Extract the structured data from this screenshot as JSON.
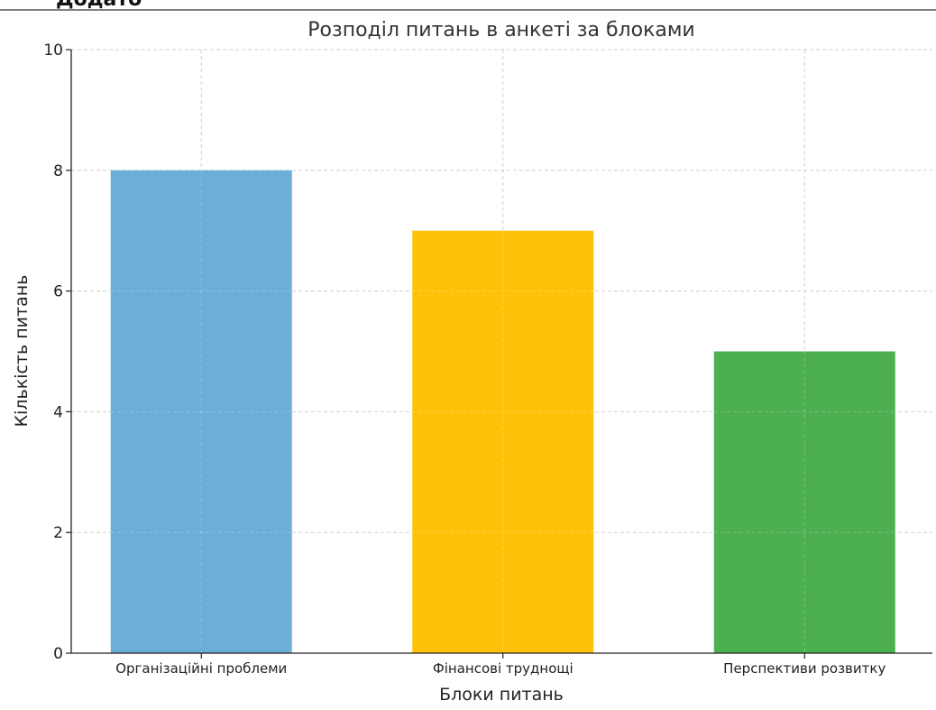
{
  "page_header": {
    "cut_text": "Додато"
  },
  "chart_data": {
    "type": "bar",
    "title": "Розподіл питань в анкеті за блоками",
    "xlabel": "Блоки питань",
    "ylabel": "Кількість питань",
    "categories": [
      "Організаційні проблеми",
      "Фінансові труднощі",
      "Перспективи розвитку"
    ],
    "values": [
      8,
      7,
      5
    ],
    "colors": [
      "#6baed6",
      "#ffc107",
      "#4caf50"
    ],
    "ylim": [
      0,
      10
    ],
    "yticks": [
      0,
      2,
      4,
      6,
      8,
      10
    ],
    "grid": true,
    "grid_style": "dashed"
  }
}
